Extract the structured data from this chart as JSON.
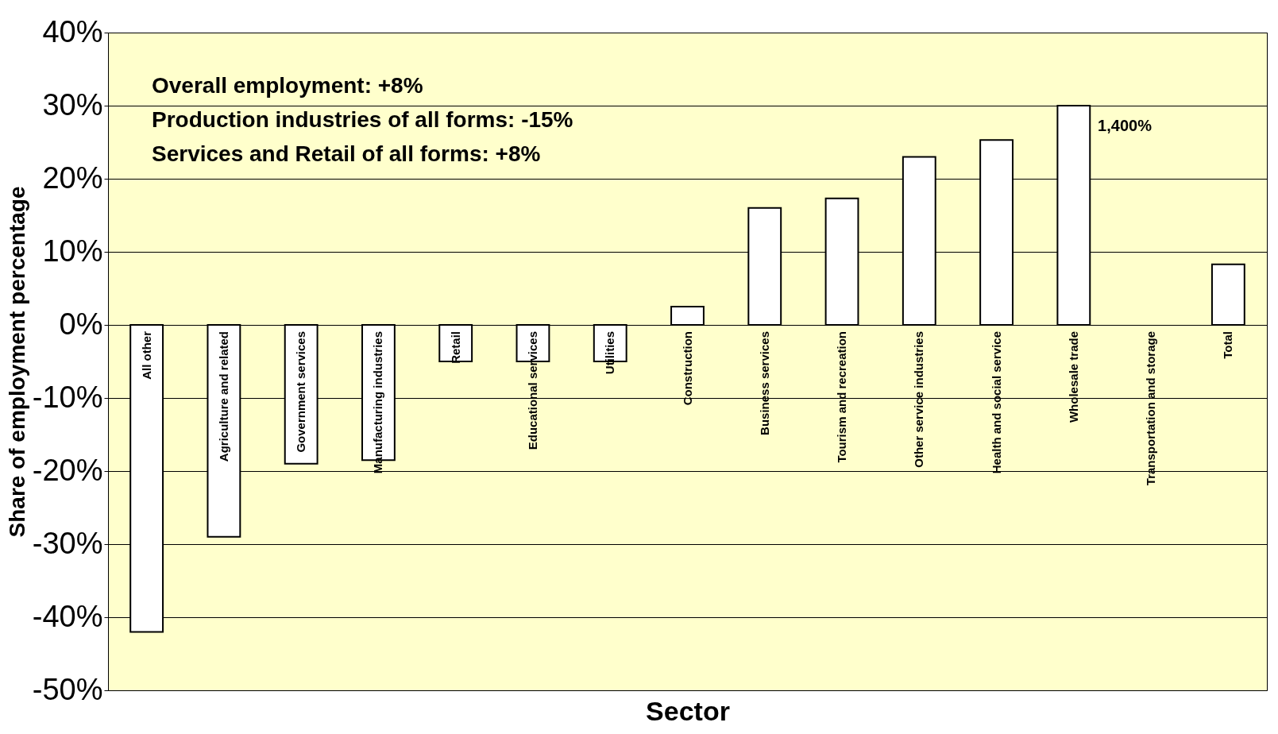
{
  "chart_data": {
    "type": "bar",
    "xlabel": "Sector",
    "ylabel": "Share of employment percentage",
    "categories": [
      "All other",
      "Agriculture and related",
      "Government services",
      "Manufacturing industries",
      "Retail",
      "Educational services",
      "Utilities",
      "Construction",
      "Business services",
      "Tourism and recreation",
      "Other service industries",
      "Health and social service",
      "Wholesale trade",
      "Transportation and storage",
      "Total"
    ],
    "values": [
      -42,
      -29,
      -19,
      -18.5,
      -5,
      -5,
      -5,
      2.5,
      16,
      17.3,
      23,
      25.3,
      30,
      null,
      8.3
    ],
    "color": "#ffffff",
    "ylim": [
      -50,
      40
    ],
    "yticks": [
      {
        "value": -50,
        "label": "-50%"
      },
      {
        "value": -40,
        "label": "-40%"
      },
      {
        "value": -30,
        "label": "-30%"
      },
      {
        "value": -20,
        "label": "-20%"
      },
      {
        "value": -10,
        "label": "-10%"
      },
      {
        "value": 0,
        "label": "0%"
      },
      {
        "value": 10,
        "label": "10%"
      },
      {
        "value": 20,
        "label": "20%"
      },
      {
        "value": 30,
        "label": "30%"
      },
      {
        "value": 40,
        "label": "40%"
      }
    ],
    "grid": "y",
    "annotations": [
      "Overall employment: +8%",
      "Production industries of all forms: -15%",
      "Services and Retail of all forms: +8%",
      "1,400%"
    ]
  }
}
